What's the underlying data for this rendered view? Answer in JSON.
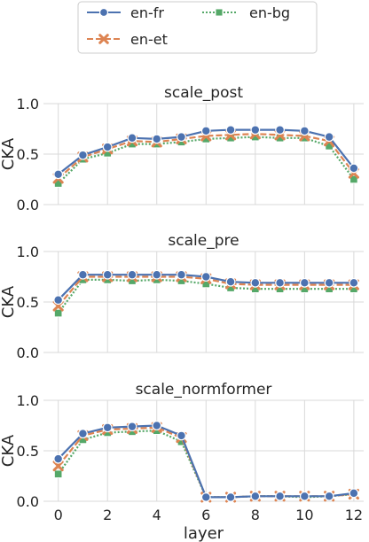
{
  "legend": {
    "placement": "top-center",
    "entries": [
      {
        "label": "en-fr",
        "color": "#4c72b0",
        "marker": "circle",
        "dash": "solid"
      },
      {
        "label": "en-et",
        "color": "#dd8452",
        "marker": "x",
        "dash": "dashed"
      },
      {
        "label": "en-bg",
        "color": "#55a868",
        "marker": "square",
        "dash": "dotted"
      }
    ]
  },
  "chart_data": [
    {
      "type": "line",
      "title": "scale_post",
      "xlabel": "",
      "ylabel": "CKA",
      "ylim": [
        0.0,
        1.0
      ],
      "xlim": [
        -0.6,
        12.4
      ],
      "yticks": [
        "0.0",
        "0.5",
        "1.0"
      ],
      "xticks": [],
      "grid": true,
      "x": [
        0,
        1,
        2,
        3,
        4,
        5,
        6,
        7,
        8,
        9,
        10,
        11,
        12
      ],
      "series": [
        {
          "name": "en-fr",
          "values": [
            0.3,
            0.49,
            0.57,
            0.66,
            0.65,
            0.67,
            0.73,
            0.74,
            0.74,
            0.74,
            0.73,
            0.67,
            0.36
          ]
        },
        {
          "name": "en-et",
          "values": [
            0.26,
            0.47,
            0.55,
            0.63,
            0.62,
            0.65,
            0.68,
            0.69,
            0.7,
            0.69,
            0.68,
            0.63,
            0.31
          ]
        },
        {
          "name": "en-bg",
          "values": [
            0.21,
            0.45,
            0.51,
            0.6,
            0.6,
            0.62,
            0.65,
            0.66,
            0.67,
            0.66,
            0.66,
            0.58,
            0.25
          ]
        }
      ]
    },
    {
      "type": "line",
      "title": "scale_pre",
      "xlabel": "",
      "ylabel": "CKA",
      "ylim": [
        0.0,
        1.0
      ],
      "xlim": [
        -0.6,
        12.4
      ],
      "yticks": [
        "0.0",
        "0.5",
        "1.0"
      ],
      "xticks": [],
      "grid": true,
      "x": [
        0,
        1,
        2,
        3,
        4,
        5,
        6,
        7,
        8,
        9,
        10,
        11,
        12
      ],
      "series": [
        {
          "name": "en-fr",
          "values": [
            0.52,
            0.77,
            0.77,
            0.77,
            0.77,
            0.77,
            0.75,
            0.7,
            0.69,
            0.69,
            0.69,
            0.69,
            0.69
          ]
        },
        {
          "name": "en-et",
          "values": [
            0.46,
            0.75,
            0.75,
            0.75,
            0.75,
            0.75,
            0.73,
            0.68,
            0.67,
            0.67,
            0.67,
            0.67,
            0.67
          ]
        },
        {
          "name": "en-bg",
          "values": [
            0.39,
            0.72,
            0.72,
            0.71,
            0.72,
            0.71,
            0.68,
            0.64,
            0.63,
            0.63,
            0.63,
            0.63,
            0.63
          ]
        }
      ]
    },
    {
      "type": "line",
      "title": "scale_normformer",
      "xlabel": "layer",
      "ylabel": "CKA",
      "ylim": [
        0.0,
        1.0
      ],
      "xlim": [
        -0.6,
        12.4
      ],
      "yticks": [
        "0.0",
        "0.5",
        "1.0"
      ],
      "xticks": [
        "0",
        "2",
        "4",
        "6",
        "8",
        "10",
        "12"
      ],
      "grid": true,
      "x": [
        0,
        1,
        2,
        3,
        4,
        5,
        6,
        7,
        8,
        9,
        10,
        11,
        12
      ],
      "series": [
        {
          "name": "en-fr",
          "values": [
            0.42,
            0.67,
            0.73,
            0.74,
            0.75,
            0.65,
            0.04,
            0.04,
            0.05,
            0.05,
            0.05,
            0.05,
            0.08
          ]
        },
        {
          "name": "en-et",
          "values": [
            0.35,
            0.65,
            0.71,
            0.72,
            0.73,
            0.63,
            0.04,
            0.04,
            0.05,
            0.05,
            0.05,
            0.05,
            0.07
          ]
        },
        {
          "name": "en-bg",
          "values": [
            0.27,
            0.61,
            0.68,
            0.69,
            0.7,
            0.59,
            0.04,
            0.04,
            0.05,
            0.05,
            0.04,
            0.05,
            0.07
          ]
        }
      ]
    }
  ]
}
